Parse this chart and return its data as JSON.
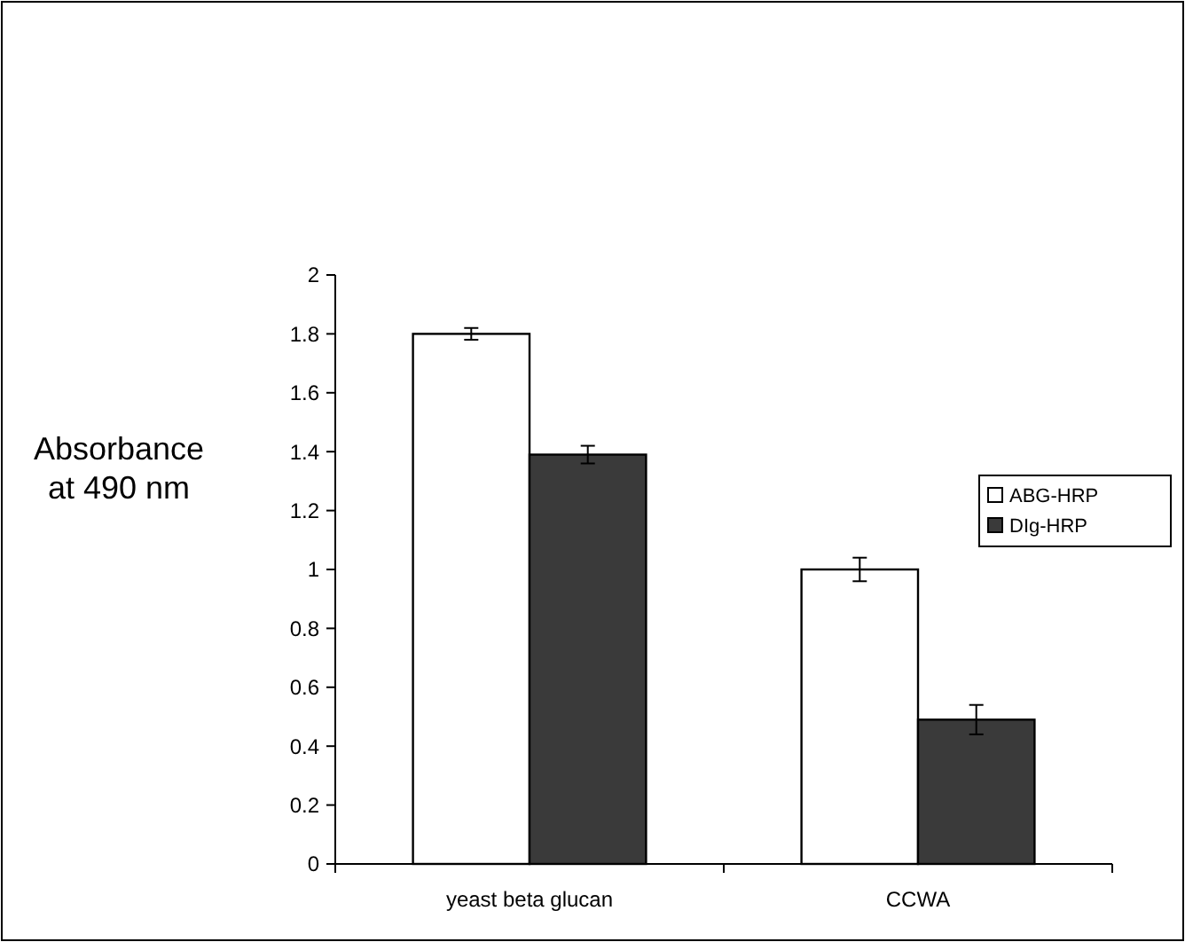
{
  "chart_data": {
    "type": "bar",
    "ylabel": "Absorbance at 490 nm",
    "categories": [
      "yeast beta glucan",
      "CCWA"
    ],
    "series": [
      {
        "name": "ABG-HRP",
        "color": "#ffffff",
        "values": [
          1.8,
          1.0
        ],
        "errors": [
          0.02,
          0.04
        ]
      },
      {
        "name": "DIg-HRP",
        "color": "#3a3a3a",
        "values": [
          1.39,
          0.49
        ],
        "errors": [
          0.03,
          0.05
        ]
      }
    ],
    "ylim": [
      0,
      2
    ],
    "yticks": [
      0,
      0.2,
      0.4,
      0.6,
      0.8,
      1,
      1.2,
      1.4,
      1.6,
      1.8,
      2
    ],
    "grid": false,
    "legend": "right"
  }
}
